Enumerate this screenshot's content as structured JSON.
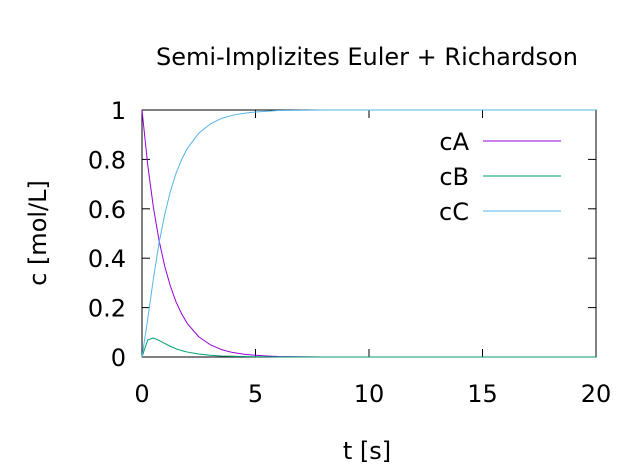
{
  "chart_data": {
    "type": "line",
    "title": "Semi-Implizites Euler + Richardson",
    "xlabel": "t [s]",
    "ylabel": "c [mol/L]",
    "xlim": [
      0,
      20
    ],
    "ylim": [
      0,
      1
    ],
    "xticks": [
      "0",
      "5",
      "10",
      "15",
      "20"
    ],
    "yticks": [
      "0",
      "0.2",
      "0.4",
      "0.6",
      "0.8",
      "1"
    ],
    "grid": false,
    "legend_position": "top-right",
    "x": [
      0,
      0.25,
      0.5,
      0.75,
      1,
      1.25,
      1.5,
      1.75,
      2,
      2.5,
      3,
      3.5,
      4,
      4.5,
      5,
      5.5,
      6,
      7,
      8,
      10,
      12,
      14,
      16,
      18,
      20
    ],
    "series": [
      {
        "name": "cA",
        "color": "#9400d3",
        "values": [
          1,
          0.779,
          0.607,
          0.472,
          0.368,
          0.287,
          0.223,
          0.174,
          0.135,
          0.082,
          0.05,
          0.03,
          0.018,
          0.011,
          0.007,
          0.004,
          0.002,
          0.001,
          0,
          0,
          0,
          0,
          0,
          0,
          0
        ]
      },
      {
        "name": "cB",
        "color": "#009e73",
        "values": [
          0,
          0.069,
          0.077,
          0.067,
          0.055,
          0.043,
          0.033,
          0.026,
          0.02,
          0.012,
          0.007,
          0.004,
          0.003,
          0.002,
          0.001,
          0.001,
          0,
          0,
          0,
          0,
          0,
          0,
          0,
          0,
          0
        ]
      },
      {
        "name": "cC",
        "color": "#56b4e9",
        "values": [
          0,
          0.152,
          0.316,
          0.461,
          0.577,
          0.67,
          0.744,
          0.8,
          0.845,
          0.906,
          0.943,
          0.966,
          0.979,
          0.987,
          0.992,
          0.995,
          0.998,
          0.999,
          1,
          1,
          1,
          1,
          1,
          1,
          1
        ]
      }
    ]
  }
}
